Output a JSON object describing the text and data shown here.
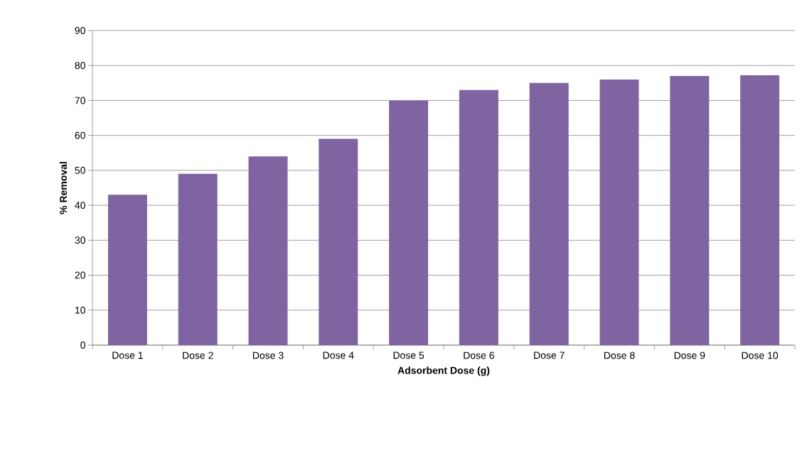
{
  "chart_data": {
    "type": "bar",
    "xlabel": "Adsorbent Dose (g)",
    "ylabel": "% Removal",
    "categories": [
      "Dose 1",
      "Dose 2",
      "Dose 3",
      "Dose 4",
      "Dose 5",
      "Dose 6",
      "Dose 7",
      "Dose 8",
      "Dose 9",
      "Dose 10"
    ],
    "values": [
      43,
      49,
      54,
      59,
      70,
      73,
      75,
      76,
      77,
      77.2
    ],
    "color": "#8064a2",
    "ylim": [
      0,
      90
    ],
    "yticks": [
      0,
      10,
      20,
      30,
      40,
      50,
      60,
      70,
      80,
      90
    ],
    "grid": "y"
  }
}
